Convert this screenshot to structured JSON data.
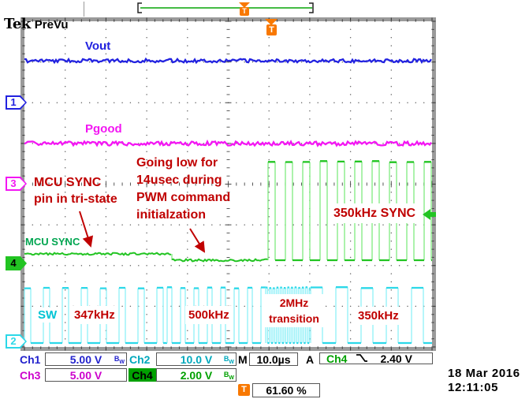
{
  "header": {
    "brand": "Tek",
    "mode": "PreVu"
  },
  "channel_markers": {
    "ch1": "1",
    "ch2": "2",
    "ch3": "3",
    "ch4": "4"
  },
  "trace_labels": {
    "vout": "Vout",
    "pgood": "Pgood",
    "mcu_sync": "MCU SYNC",
    "sw": "SW"
  },
  "annotations": {
    "tristate": "MCU SYNC\npin in tri-state",
    "going_low": "Going low for\n14usec during\nPWM command\ninitialzation",
    "freq_347": "347kHz",
    "freq_500": "500kHz",
    "freq_2mhz": "2MHz\ntransition",
    "freq_350_sw": "350kHz",
    "sync_350": "350kHz SYNC"
  },
  "readouts": {
    "ch1_label": "Ch1",
    "ch1_scale": "5.00 V",
    "ch2_label": "Ch2",
    "ch2_scale": "10.0 V",
    "ch3_label": "Ch3",
    "ch3_scale": "5.00 V",
    "ch4_label": "Ch4",
    "ch4_scale": "2.00 V",
    "bw_b": "B",
    "bw_sub": "W",
    "time_label": "M",
    "timebase": "10.0µs",
    "trig_label": "A",
    "trig_source": "Ch4",
    "trig_level": "2.40 V",
    "trig_icon": "T",
    "trig_position": "61.60 %"
  },
  "footer": {
    "date": "18 Mar 2016",
    "time": "12:11:05"
  },
  "waveforms": {
    "ch1": {
      "label": "Vout",
      "shape": "flat dc with noise"
    },
    "ch3": {
      "label": "Pgood",
      "shape": "flat dc with noise"
    },
    "ch4": {
      "label": "MCU SYNC",
      "shape": "tri-state flat, goes low, then 350kHz sync square wave"
    },
    "ch2": {
      "label": "SW",
      "shape": "square wave",
      "regions": [
        "347kHz",
        "500kHz",
        "2MHz transition",
        "350kHz"
      ]
    }
  },
  "colors": {
    "ch1_blue": "#2222e0",
    "ch2_cyan_edge": "#8ff0f8",
    "ch2_cyan_cap": "#2cd8e8",
    "ch2_cyan_label": "#00c4d4",
    "ch3_magenta": "#f316f3",
    "ch4_green_edge": "#80ec80",
    "ch4_green_cap": "#22c422",
    "ch4_green_label": "#00a550",
    "annotation_red": "#c00000",
    "trigger_orange": "#f87800",
    "readout_blue": "#2222cc",
    "readout_cyan": "#00a8bc",
    "readout_magenta": "#cc00cc",
    "readout_green": "#00a000",
    "black": "#000000",
    "frame_gray": "#9a9a9a",
    "grid_gray": "#666666",
    "record_green": "#44bb44"
  }
}
